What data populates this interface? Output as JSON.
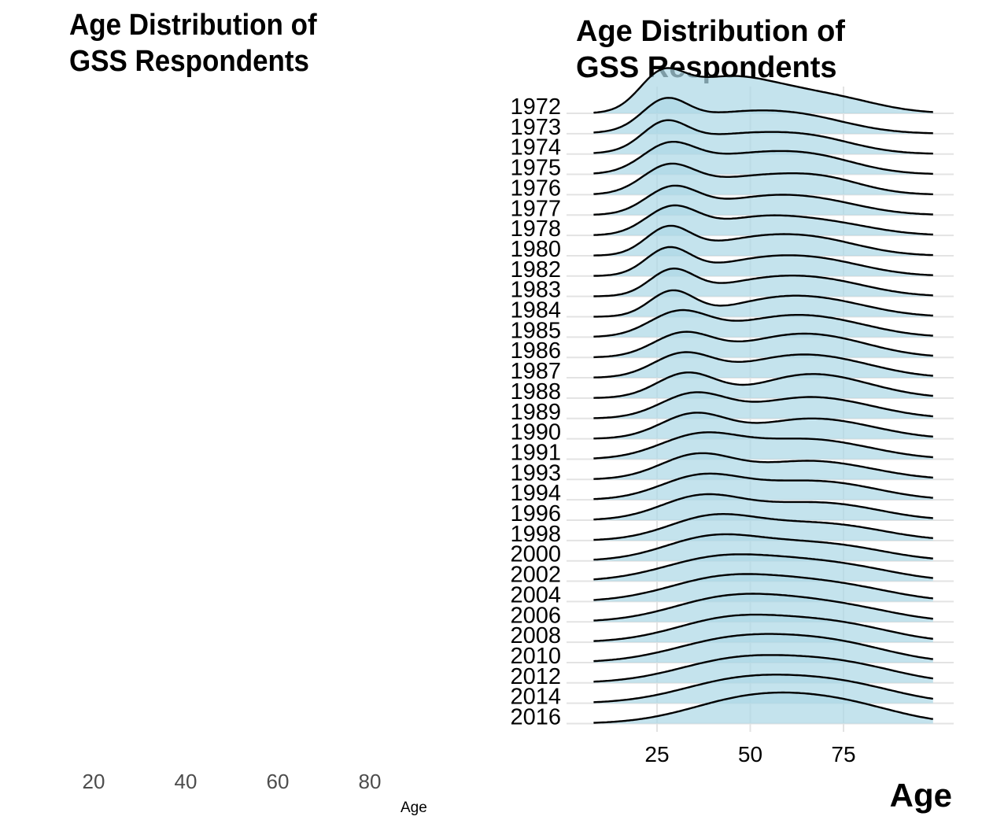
{
  "chart_data": [
    {
      "type": "area",
      "title": "Age Distribution of\nGSS Respondents",
      "xlabel": "Age",
      "x_ticks": [
        "20",
        "40",
        "60",
        "80"
      ],
      "series": []
    },
    {
      "type": "area",
      "subtype": "ridgeline",
      "title": "Age Distribution of\nGSS Respondents",
      "xlabel": "Age",
      "x_ticks": [
        25,
        50,
        75
      ],
      "xlim": [
        8,
        99
      ],
      "fill_color": "#add8e6",
      "line_color": "#000000",
      "grid": true,
      "categories": [
        "1972",
        "1973",
        "1974",
        "1975",
        "1976",
        "1977",
        "1978",
        "1980",
        "1982",
        "1983",
        "1984",
        "1985",
        "1986",
        "1987",
        "1988",
        "1989",
        "1990",
        "1991",
        "1993",
        "1994",
        "1996",
        "1998",
        "2000",
        "2002",
        "2004",
        "2006",
        "2008",
        "2010",
        "2012",
        "2014",
        "2016"
      ],
      "series": [
        {
          "name": "1972",
          "peaks": [
            [
              26,
              1.35,
              6
            ],
            [
              38,
              0.6,
              10
            ],
            [
              50,
              1.15,
              13
            ],
            [
              73,
              0.55,
              12
            ]
          ]
        },
        {
          "name": "1973",
          "peaks": [
            [
              27,
              1.1,
              6
            ],
            [
              44,
              0.75,
              15
            ],
            [
              65,
              0.55,
              13
            ]
          ]
        },
        {
          "name": "1974",
          "peaks": [
            [
              27,
              1.05,
              6
            ],
            [
              45,
              0.75,
              15
            ],
            [
              67,
              0.55,
              12
            ]
          ]
        },
        {
          "name": "1975",
          "peaks": [
            [
              28,
              1.05,
              7
            ],
            [
              48,
              0.75,
              15
            ],
            [
              68,
              0.55,
              12
            ]
          ]
        },
        {
          "name": "1976",
          "peaks": [
            [
              28,
              1.1,
              7
            ],
            [
              50,
              0.7,
              14
            ],
            [
              70,
              0.55,
              11
            ]
          ]
        },
        {
          "name": "1977",
          "peaks": [
            [
              29,
              1.1,
              7
            ],
            [
              52,
              0.65,
              13
            ],
            [
              70,
              0.45,
              12
            ]
          ]
        },
        {
          "name": "1978",
          "peaks": [
            [
              29,
              1.15,
              7
            ],
            [
              52,
              0.7,
              12
            ],
            [
              72,
              0.45,
              12
            ]
          ]
        },
        {
          "name": "1980",
          "peaks": [
            [
              28,
              1.1,
              6
            ],
            [
              52,
              0.7,
              14
            ],
            [
              70,
              0.45,
              12
            ]
          ]
        },
        {
          "name": "1982",
          "peaks": [
            [
              28,
              1.1,
              6
            ],
            [
              54,
              0.7,
              14
            ],
            [
              72,
              0.4,
              12
            ]
          ]
        },
        {
          "name": "1983",
          "peaks": [
            [
              29,
              1.05,
              6
            ],
            [
              55,
              0.7,
              14
            ],
            [
              73,
              0.4,
              12
            ]
          ]
        },
        {
          "name": "1984",
          "peaks": [
            [
              29,
              1.05,
              6
            ],
            [
              57,
              0.7,
              13
            ],
            [
              74,
              0.4,
              12
            ]
          ]
        },
        {
          "name": "1985",
          "peaks": [
            [
              31,
              1.05,
              8
            ],
            [
              58,
              0.75,
              13
            ],
            [
              75,
              0.4,
              12
            ]
          ]
        },
        {
          "name": "1986",
          "peaks": [
            [
              32,
              1.0,
              8
            ],
            [
              60,
              0.8,
              13
            ],
            [
              76,
              0.4,
              12
            ]
          ]
        },
        {
          "name": "1987",
          "peaks": [
            [
              32,
              1.0,
              8
            ],
            [
              60,
              0.8,
              13
            ],
            [
              77,
              0.4,
              12
            ]
          ]
        },
        {
          "name": "1988",
          "peaks": [
            [
              33,
              1.05,
              8
            ],
            [
              63,
              0.8,
              12
            ],
            [
              78,
              0.4,
              12
            ]
          ]
        },
        {
          "name": "1989",
          "peaks": [
            [
              35,
              1.05,
              9
            ],
            [
              62,
              0.7,
              12
            ],
            [
              78,
              0.4,
              12
            ]
          ]
        },
        {
          "name": "1990",
          "peaks": [
            [
              35,
              1.05,
              9
            ],
            [
              62,
              0.65,
              12
            ],
            [
              78,
              0.4,
              12
            ]
          ]
        },
        {
          "name": "1991",
          "peaks": [
            [
              37,
              1.05,
              11
            ],
            [
              62,
              0.65,
              12
            ],
            [
              78,
              0.35,
              12
            ]
          ]
        },
        {
          "name": "1993",
          "peaks": [
            [
              36,
              1.05,
              10
            ],
            [
              62,
              0.6,
              12
            ],
            [
              78,
              0.35,
              12
            ]
          ]
        },
        {
          "name": "1994",
          "peaks": [
            [
              37,
              1.0,
              11
            ],
            [
              62,
              0.6,
              13
            ],
            [
              78,
              0.35,
              12
            ]
          ]
        },
        {
          "name": "1996",
          "peaks": [
            [
              37,
              1.0,
              11
            ],
            [
              62,
              0.55,
              13
            ],
            [
              78,
              0.35,
              12
            ]
          ]
        },
        {
          "name": "1998",
          "peaks": [
            [
              40,
              1.0,
              12
            ],
            [
              64,
              0.55,
              13
            ],
            [
              80,
              0.3,
              12
            ]
          ]
        },
        {
          "name": "2000",
          "peaks": [
            [
              40,
              1.0,
              13
            ],
            [
              64,
              0.55,
              13
            ],
            [
              80,
              0.3,
              12
            ]
          ]
        },
        {
          "name": "2002",
          "peaks": [
            [
              42,
              1.0,
              15
            ],
            [
              66,
              0.55,
              13
            ],
            [
              82,
              0.3,
              12
            ]
          ]
        },
        {
          "name": "2004",
          "peaks": [
            [
              43,
              1.0,
              15
            ],
            [
              66,
              0.55,
              13
            ],
            [
              82,
              0.3,
              12
            ]
          ]
        },
        {
          "name": "2006",
          "peaks": [
            [
              44,
              1.0,
              15
            ],
            [
              66,
              0.55,
              13
            ],
            [
              82,
              0.3,
              12
            ]
          ]
        },
        {
          "name": "2008",
          "peaks": [
            [
              45,
              1.0,
              15
            ],
            [
              68,
              0.55,
              13
            ],
            [
              82,
              0.3,
              12
            ]
          ]
        },
        {
          "name": "2010",
          "peaks": [
            [
              46,
              1.0,
              16
            ],
            [
              68,
              0.55,
              13
            ],
            [
              82,
              0.3,
              12
            ]
          ]
        },
        {
          "name": "2012",
          "peaks": [
            [
              47,
              1.0,
              16
            ],
            [
              70,
              0.55,
              13
            ],
            [
              84,
              0.3,
              12
            ]
          ]
        },
        {
          "name": "2014",
          "peaks": [
            [
              48,
              1.0,
              16
            ],
            [
              70,
              0.55,
              13
            ],
            [
              84,
              0.3,
              12
            ]
          ]
        },
        {
          "name": "2016",
          "peaks": [
            [
              50,
              1.05,
              16
            ],
            [
              70,
              0.55,
              13
            ],
            [
              84,
              0.3,
              12
            ]
          ]
        }
      ]
    }
  ]
}
